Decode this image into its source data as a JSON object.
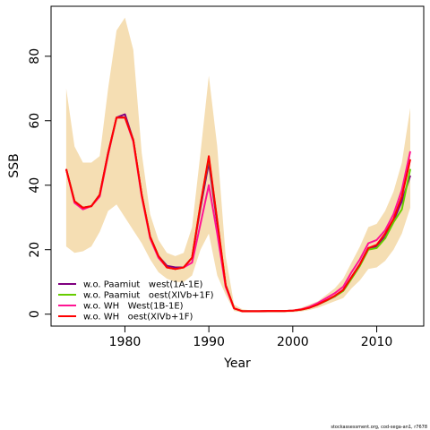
{
  "chart_data": {
    "type": "line",
    "xlabel": "Year",
    "ylabel": "SSB",
    "xlim": [
      1971.2,
      2015.6
    ],
    "ylim": [
      -3.7,
      95.5
    ],
    "xticks": [
      1980,
      1990,
      2000,
      2010
    ],
    "yticks": [
      0,
      20,
      40,
      60,
      80
    ],
    "grid": false,
    "legend_position": "bottom-left",
    "band": {
      "color": "#f5deb3",
      "x": [
        1973,
        1974,
        1975,
        1976,
        1977,
        1978,
        1979,
        1980,
        1981,
        1982,
        1983,
        1984,
        1985,
        1986,
        1987,
        1988,
        1989,
        1990,
        1991,
        1992,
        1993,
        1994,
        1995,
        1996,
        1997,
        1998,
        1999,
        2000,
        2001,
        2002,
        2003,
        2004,
        2005,
        2006,
        2007,
        2008,
        2009,
        2010,
        2011,
        2012,
        2013,
        2014
      ],
      "upper": [
        70,
        52,
        47,
        47,
        49,
        70,
        88,
        92,
        82,
        50,
        31,
        23,
        19,
        18,
        19,
        27,
        50,
        74,
        52,
        18,
        3,
        1.5,
        1.2,
        1.2,
        1.3,
        1.3,
        1.3,
        1.4,
        2,
        3,
        4,
        6,
        8,
        11,
        16,
        21,
        27,
        28,
        32,
        38,
        47,
        64
      ],
      "lower": [
        21,
        19,
        19.5,
        21,
        25.5,
        32,
        34,
        30,
        26,
        22,
        17,
        13,
        11,
        10,
        10,
        12,
        20,
        25,
        12,
        6,
        1,
        0.5,
        0.5,
        0.5,
        0.5,
        0.5,
        0.5,
        0.6,
        0.8,
        1.3,
        2,
        3,
        4,
        5,
        8,
        10.5,
        14,
        14.5,
        16.5,
        20,
        25,
        33
      ]
    },
    "x": [
      1973,
      1974,
      1975,
      1976,
      1977,
      1978,
      1979,
      1980,
      1981,
      1982,
      1983,
      1984,
      1985,
      1986,
      1987,
      1988,
      1989,
      1990,
      1991,
      1992,
      1993,
      1994,
      1995,
      1996,
      1997,
      1998,
      1999,
      2000,
      2001,
      2002,
      2003,
      2004,
      2005,
      2006,
      2007,
      2008,
      2009,
      2010,
      2011,
      2012,
      2013,
      2014
    ],
    "series": [
      {
        "name": "w.o. Paamiut   west(1A-1E)",
        "color": "#800080",
        "values": [
          45,
          35,
          33,
          33.5,
          37,
          50,
          61,
          62,
          54,
          37,
          24,
          18,
          15,
          14.5,
          14.5,
          17.5,
          33,
          47,
          28,
          9,
          1.8,
          0.9,
          0.9,
          0.9,
          1,
          1,
          1,
          1.1,
          1.4,
          2,
          3,
          4.2,
          5.5,
          7.5,
          11.5,
          15.5,
          20.5,
          21,
          24,
          29,
          35,
          43
        ]
      },
      {
        "name": "w.o. Paamiut   oest(XIVb+1F)",
        "color": "#66cc00",
        "values": [
          45,
          35,
          33,
          33.5,
          37,
          49.5,
          61,
          61,
          54,
          37,
          24,
          18,
          14.5,
          14,
          14.5,
          17.5,
          34,
          48.5,
          29,
          9,
          1.8,
          0.9,
          0.9,
          0.9,
          1,
          1,
          1,
          1.1,
          1.4,
          2,
          3,
          4.2,
          5.5,
          7.2,
          11,
          15,
          20,
          20.5,
          23.5,
          28.5,
          32.5,
          45
        ]
      },
      {
        "name": "w.o. WH   West(1B-1E)",
        "color": "#ff1493",
        "values": [
          45,
          34.5,
          32.5,
          33.5,
          36.5,
          49.5,
          61,
          61,
          53.5,
          36.5,
          23.5,
          17.5,
          14.5,
          14,
          14.5,
          16,
          28,
          40,
          25,
          8.5,
          1.8,
          0.9,
          0.9,
          0.9,
          1,
          1,
          1,
          1.1,
          1.5,
          2.3,
          3.5,
          5,
          6.5,
          8.5,
          13,
          17,
          22,
          23,
          26,
          31,
          38.5,
          50.5
        ]
      },
      {
        "name": "w.o. WH   oest(XIVb+1F)",
        "color": "#ff0000",
        "values": [
          45,
          35,
          33,
          33.5,
          37,
          50,
          61,
          61,
          54,
          37,
          24,
          18,
          14.5,
          14,
          14.5,
          17.5,
          34,
          49,
          29,
          9,
          1.8,
          0.9,
          0.9,
          0.9,
          1,
          1,
          1,
          1.1,
          1.4,
          2,
          3,
          4.3,
          5.7,
          7.5,
          11.5,
          15.5,
          20.5,
          21.5,
          25,
          29.5,
          36.5,
          48
        ]
      }
    ]
  },
  "footer": "stockassessment.org, cod-sega-an1, r7678"
}
